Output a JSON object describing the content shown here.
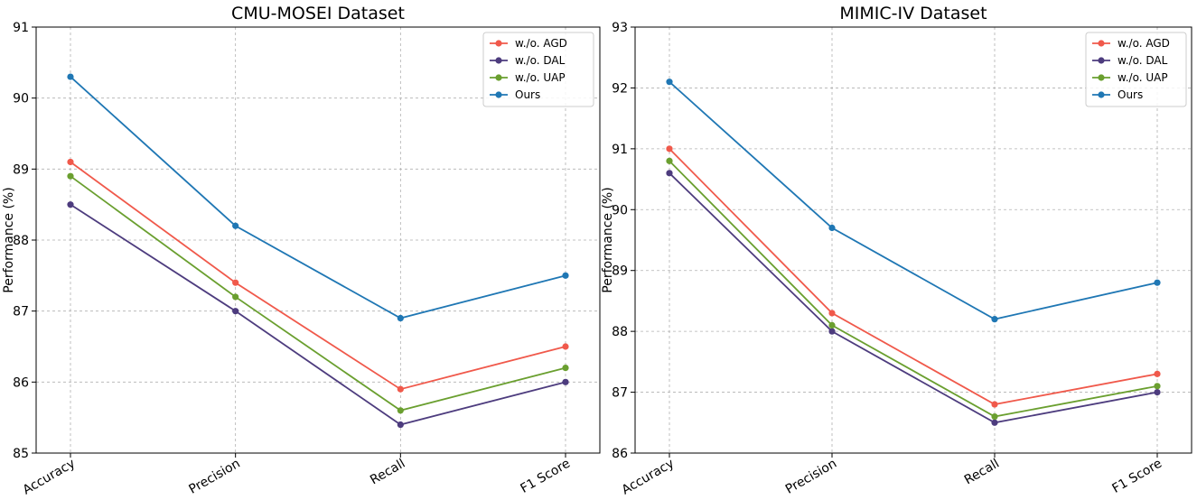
{
  "chart_data": [
    {
      "type": "line",
      "title": "CMU-MOSEI Dataset",
      "xlabel": "",
      "ylabel": "Performance (%)",
      "categories": [
        "Accuracy",
        "Precision",
        "Recall",
        "F1 Score"
      ],
      "ylim": [
        85,
        91
      ],
      "yticks": [
        85,
        86,
        87,
        88,
        89,
        90,
        91
      ],
      "grid": true,
      "legend_position": "top-right",
      "series": [
        {
          "name": "w./o. AGD",
          "color": "#f0594b",
          "values": [
            89.1,
            87.4,
            85.9,
            86.5
          ]
        },
        {
          "name": "w./o. DAL",
          "color": "#4d3c7e",
          "values": [
            88.5,
            87.0,
            85.4,
            86.0
          ]
        },
        {
          "name": "w./o. UAP",
          "color": "#6a9f2f",
          "values": [
            88.9,
            87.2,
            85.6,
            86.2
          ]
        },
        {
          "name": "Ours",
          "color": "#1f77b4",
          "values": [
            90.3,
            88.2,
            86.9,
            87.5
          ]
        }
      ]
    },
    {
      "type": "line",
      "title": "MIMIC-IV Dataset",
      "xlabel": "",
      "ylabel": "Performance (%)",
      "categories": [
        "Accuracy",
        "Precision",
        "Recall",
        "F1 Score"
      ],
      "ylim": [
        86,
        93
      ],
      "yticks": [
        86,
        87,
        88,
        89,
        90,
        91,
        92,
        93
      ],
      "grid": true,
      "legend_position": "top-right",
      "series": [
        {
          "name": "w./o. AGD",
          "color": "#f0594b",
          "values": [
            91.0,
            88.3,
            86.8,
            87.3
          ]
        },
        {
          "name": "w./o. DAL",
          "color": "#4d3c7e",
          "values": [
            90.6,
            88.0,
            86.5,
            87.0
          ]
        },
        {
          "name": "w./o. UAP",
          "color": "#6a9f2f",
          "values": [
            90.8,
            88.1,
            86.6,
            87.1
          ]
        },
        {
          "name": "Ours",
          "color": "#1f77b4",
          "values": [
            92.1,
            89.7,
            88.2,
            88.8
          ]
        }
      ]
    }
  ]
}
